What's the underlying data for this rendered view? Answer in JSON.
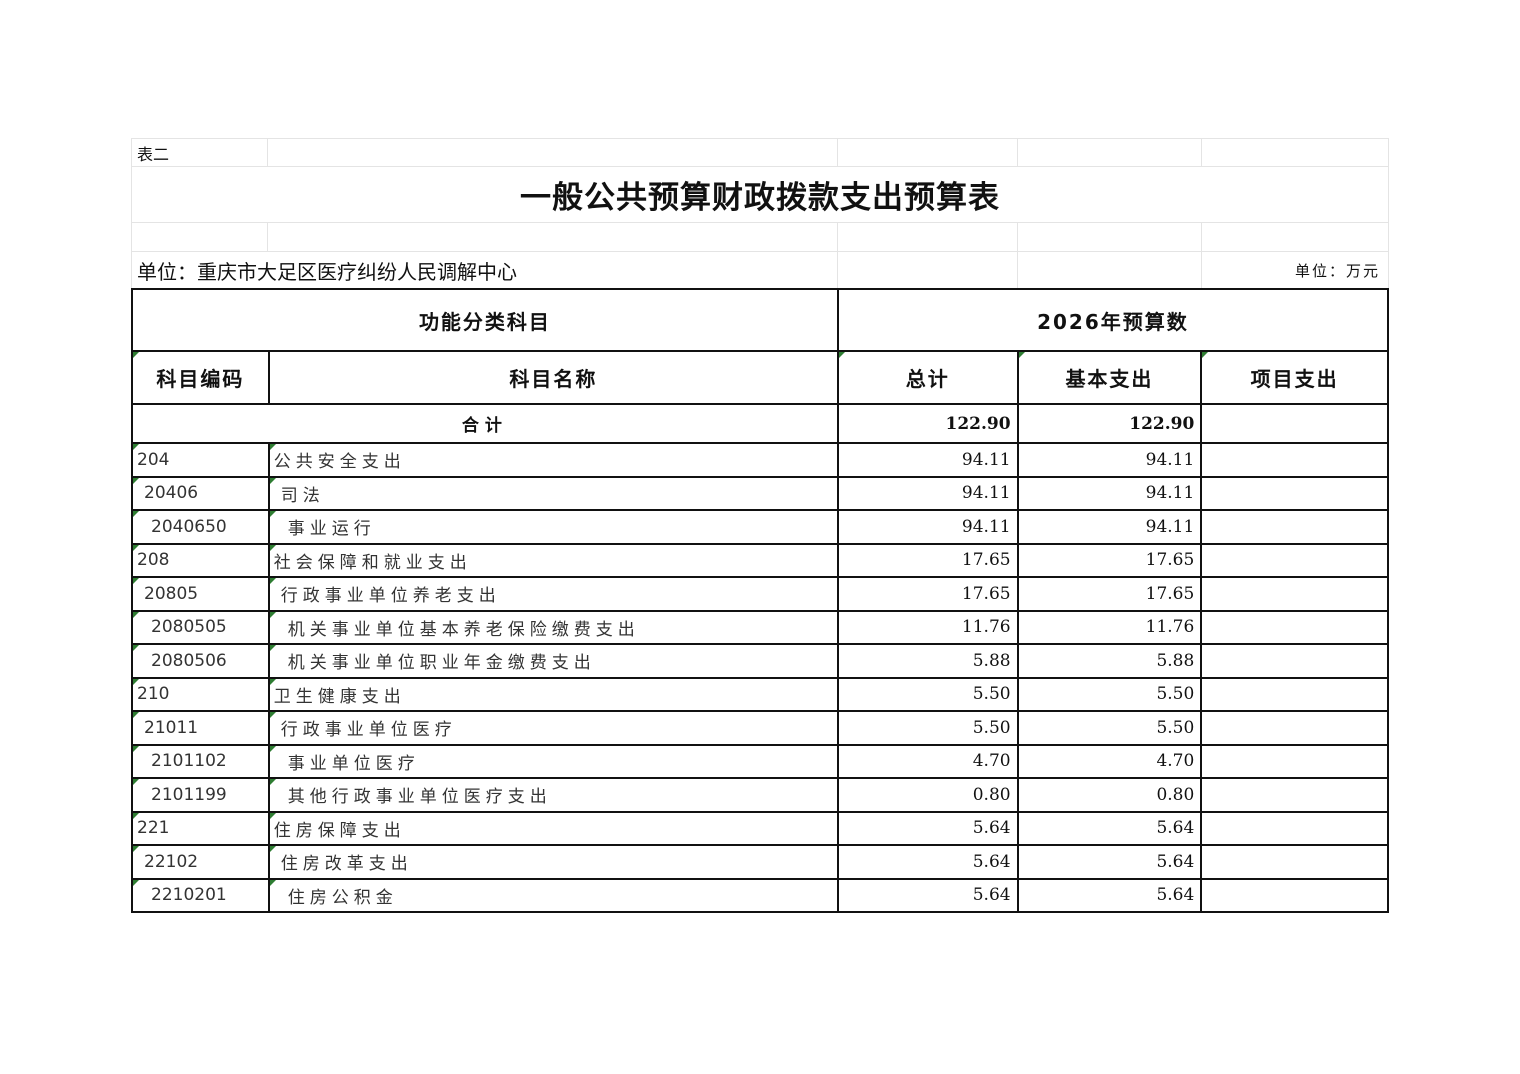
{
  "table_label": "表二",
  "title": "一般公共预算财政拨款支出预算表",
  "unit_org": "单位：重庆市大足区医疗纠纷人民调解中心",
  "unit_currency": "单位：万元",
  "header": {
    "group_left": "功能分类科目",
    "group_right": "2026年预算数",
    "code": "科目编码",
    "name": "科目名称",
    "total": "总计",
    "basic": "基本支出",
    "project": "项目支出"
  },
  "total_row": {
    "label": "合计",
    "total": "122.90",
    "basic": "122.90",
    "project": ""
  },
  "rows": [
    {
      "code": "204",
      "name": "公共安全支出",
      "total": "94.11",
      "basic": "94.11",
      "project": "",
      "level": 1
    },
    {
      "code": "20406",
      "name": "司法",
      "total": "94.11",
      "basic": "94.11",
      "project": "",
      "level": 2
    },
    {
      "code": "2040650",
      "name": "事业运行",
      "total": "94.11",
      "basic": "94.11",
      "project": "",
      "level": 3
    },
    {
      "code": "208",
      "name": "社会保障和就业支出",
      "total": "17.65",
      "basic": "17.65",
      "project": "",
      "level": 1
    },
    {
      "code": "20805",
      "name": "行政事业单位养老支出",
      "total": "17.65",
      "basic": "17.65",
      "project": "",
      "level": 2
    },
    {
      "code": "2080505",
      "name": "机关事业单位基本养老保险缴费支出",
      "total": "11.76",
      "basic": "11.76",
      "project": "",
      "level": 3
    },
    {
      "code": "2080506",
      "name": "机关事业单位职业年金缴费支出",
      "total": "5.88",
      "basic": "5.88",
      "project": "",
      "level": 3
    },
    {
      "code": "210",
      "name": "卫生健康支出",
      "total": "5.50",
      "basic": "5.50",
      "project": "",
      "level": 1
    },
    {
      "code": "21011",
      "name": "行政事业单位医疗",
      "total": "5.50",
      "basic": "5.50",
      "project": "",
      "level": 2
    },
    {
      "code": "2101102",
      "name": "事业单位医疗",
      "total": "4.70",
      "basic": "4.70",
      "project": "",
      "level": 3
    },
    {
      "code": "2101199",
      "name": "其他行政事业单位医疗支出",
      "total": "0.80",
      "basic": "0.80",
      "project": "",
      "level": 3
    },
    {
      "code": "221",
      "name": "住房保障支出",
      "total": "5.64",
      "basic": "5.64",
      "project": "",
      "level": 1
    },
    {
      "code": "22102",
      "name": "住房改革支出",
      "total": "5.64",
      "basic": "5.64",
      "project": "",
      "level": 2
    },
    {
      "code": "2210201",
      "name": "住房公积金",
      "total": "5.64",
      "basic": "5.64",
      "project": "",
      "level": 3
    }
  ]
}
